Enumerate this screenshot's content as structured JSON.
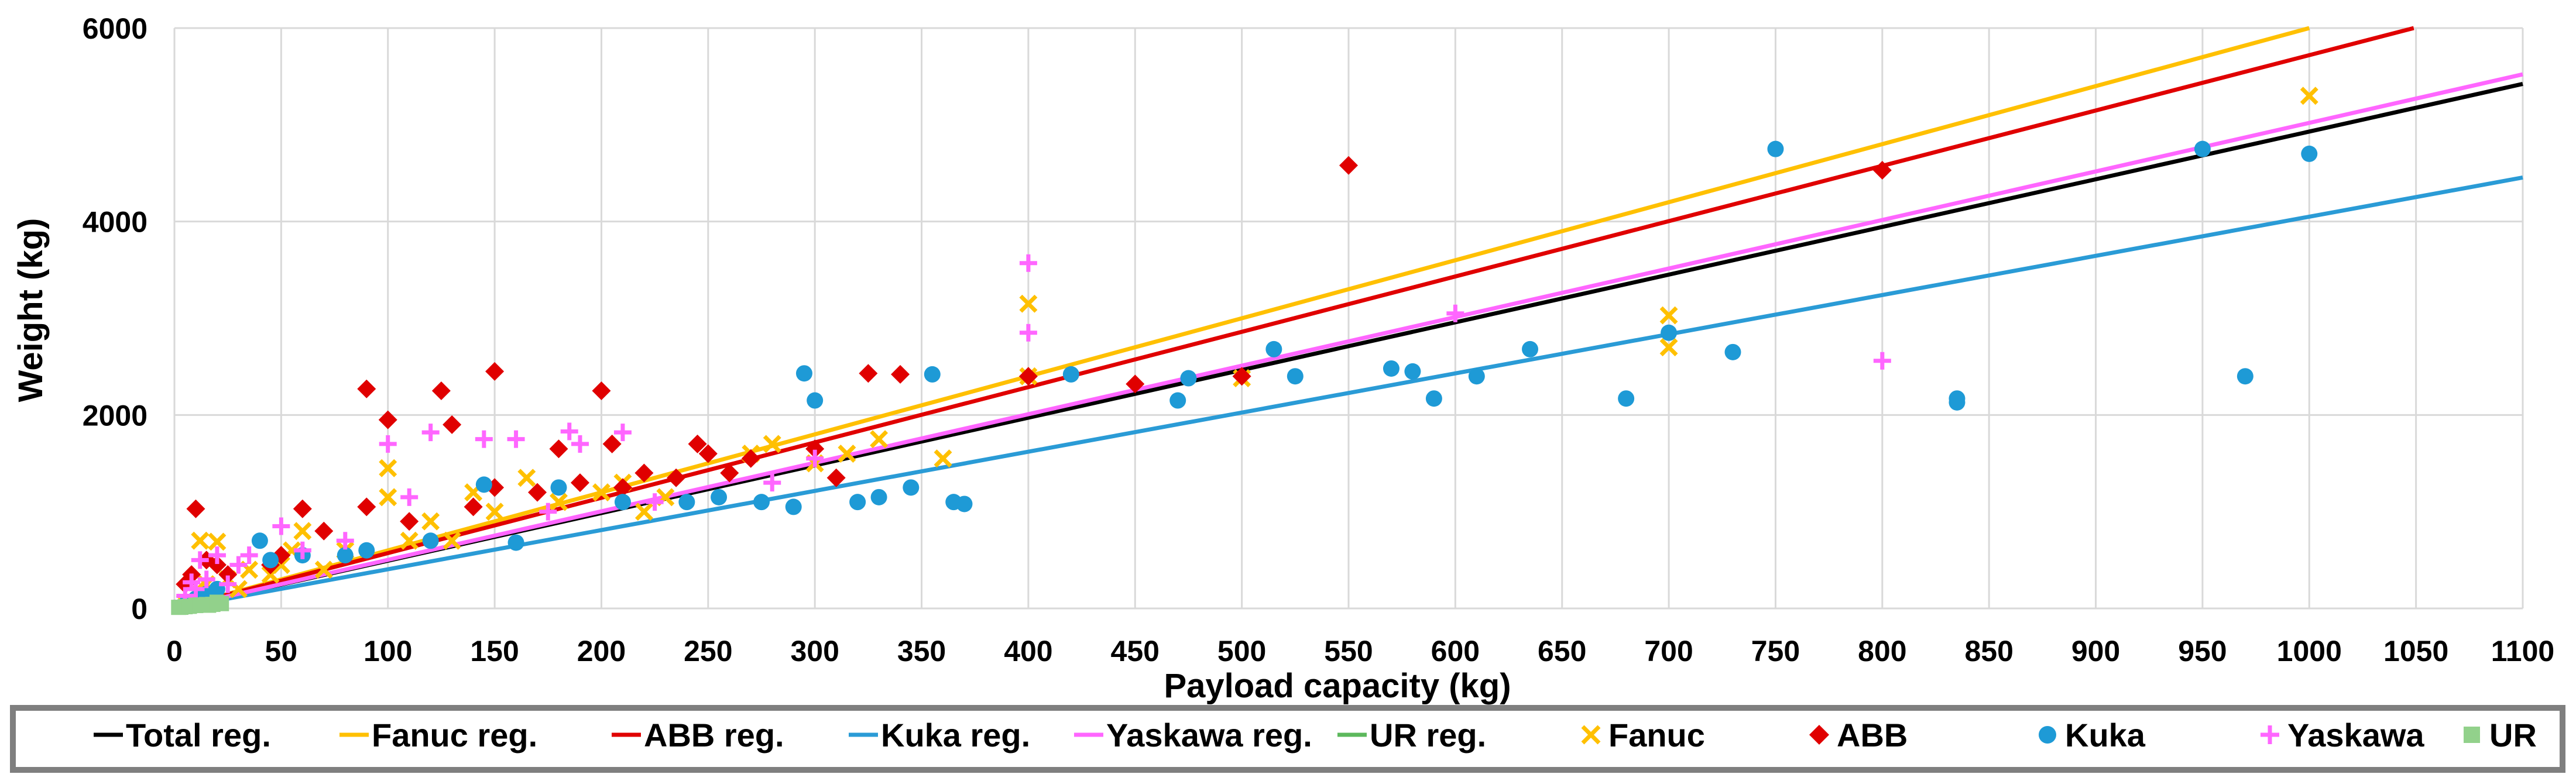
{
  "chart_data": {
    "type": "scatter",
    "title": "",
    "xlabel": "Payload capacity (kg)",
    "ylabel": "Weight (kg)",
    "xlim": [
      0,
      1100
    ],
    "ylim": [
      0,
      6000
    ],
    "x_ticks": [
      0,
      50,
      100,
      150,
      200,
      250,
      300,
      350,
      400,
      450,
      500,
      550,
      600,
      650,
      700,
      750,
      800,
      850,
      900,
      950,
      1000,
      1050,
      1100
    ],
    "y_ticks": [
      0,
      2000,
      4000,
      6000
    ],
    "grid": "vertical and horizontal gridlines",
    "legend_position": "bottom",
    "regressions": [
      {
        "name": "Total reg.",
        "color": "#000000",
        "slope": 4.93
      },
      {
        "name": "Fanuc reg.",
        "color": "#FFC000",
        "slope": 6.0
      },
      {
        "name": "ABB reg.",
        "color": "#E00000",
        "slope": 5.72
      },
      {
        "name": "Kuka reg.",
        "color": "#2A9BD6",
        "slope": 4.05
      },
      {
        "name": "Yaskawa reg.",
        "color": "#FF66FF",
        "slope": 5.02
      },
      {
        "name": "UR reg.",
        "color": "#5CB85C",
        "slope": 3.0,
        "x_max": 20
      }
    ],
    "series": [
      {
        "name": "Fanuc",
        "marker": "x",
        "color": "#FFC000",
        "points": [
          [
            5,
            60
          ],
          [
            10,
            180
          ],
          [
            12,
            700
          ],
          [
            15,
            250
          ],
          [
            20,
            690
          ],
          [
            25,
            300
          ],
          [
            30,
            200
          ],
          [
            35,
            400
          ],
          [
            45,
            350
          ],
          [
            50,
            450
          ],
          [
            55,
            600
          ],
          [
            60,
            800
          ],
          [
            70,
            400
          ],
          [
            80,
            600
          ],
          [
            100,
            1150
          ],
          [
            100,
            1450
          ],
          [
            110,
            700
          ],
          [
            120,
            900
          ],
          [
            130,
            700
          ],
          [
            140,
            1200
          ],
          [
            150,
            1000
          ],
          [
            165,
            1350
          ],
          [
            180,
            1100
          ],
          [
            200,
            1200
          ],
          [
            210,
            1300
          ],
          [
            220,
            1000
          ],
          [
            230,
            1150
          ],
          [
            270,
            1600
          ],
          [
            280,
            1700
          ],
          [
            300,
            1500
          ],
          [
            315,
            1600
          ],
          [
            330,
            1750
          ],
          [
            360,
            1550
          ],
          [
            400,
            3150
          ],
          [
            400,
            2400
          ],
          [
            500,
            2380
          ],
          [
            700,
            3030
          ],
          [
            700,
            2700
          ],
          [
            1000,
            5300
          ]
        ]
      },
      {
        "name": "ABB",
        "marker": "diamond",
        "color": "#E00000",
        "points": [
          [
            5,
            250
          ],
          [
            8,
            350
          ],
          [
            10,
            1030
          ],
          [
            15,
            500
          ],
          [
            20,
            450
          ],
          [
            25,
            350
          ],
          [
            45,
            450
          ],
          [
            50,
            550
          ],
          [
            60,
            1030
          ],
          [
            70,
            800
          ],
          [
            90,
            2270
          ],
          [
            90,
            1050
          ],
          [
            100,
            1950
          ],
          [
            110,
            900
          ],
          [
            125,
            2250
          ],
          [
            130,
            1900
          ],
          [
            140,
            1050
          ],
          [
            150,
            2450
          ],
          [
            150,
            1250
          ],
          [
            170,
            1200
          ],
          [
            180,
            1650
          ],
          [
            190,
            1300
          ],
          [
            200,
            2250
          ],
          [
            205,
            1700
          ],
          [
            210,
            1250
          ],
          [
            220,
            1400
          ],
          [
            235,
            1350
          ],
          [
            245,
            1700
          ],
          [
            250,
            1600
          ],
          [
            260,
            1400
          ],
          [
            270,
            1550
          ],
          [
            300,
            1650
          ],
          [
            310,
            1350
          ],
          [
            325,
            2430
          ],
          [
            340,
            2420
          ],
          [
            400,
            2400
          ],
          [
            450,
            2320
          ],
          [
            500,
            2400
          ],
          [
            550,
            4580
          ],
          [
            800,
            4530
          ]
        ]
      },
      {
        "name": "Kuka",
        "marker": "circle",
        "color": "#1E9AD6",
        "points": [
          [
            6,
            60
          ],
          [
            10,
            100
          ],
          [
            15,
            150
          ],
          [
            20,
            200
          ],
          [
            40,
            700
          ],
          [
            45,
            500
          ],
          [
            60,
            550
          ],
          [
            80,
            550
          ],
          [
            90,
            600
          ],
          [
            120,
            700
          ],
          [
            145,
            1280
          ],
          [
            160,
            680
          ],
          [
            180,
            1250
          ],
          [
            210,
            1100
          ],
          [
            240,
            1100
          ],
          [
            255,
            1150
          ],
          [
            275,
            1100
          ],
          [
            290,
            1050
          ],
          [
            295,
            2430
          ],
          [
            300,
            2150
          ],
          [
            320,
            1100
          ],
          [
            330,
            1150
          ],
          [
            345,
            1250
          ],
          [
            355,
            2420
          ],
          [
            365,
            1100
          ],
          [
            370,
            1080
          ],
          [
            420,
            2420
          ],
          [
            470,
            2150
          ],
          [
            475,
            2380
          ],
          [
            515,
            2680
          ],
          [
            525,
            2400
          ],
          [
            570,
            2480
          ],
          [
            580,
            2450
          ],
          [
            590,
            2170
          ],
          [
            610,
            2400
          ],
          [
            635,
            2680
          ],
          [
            680,
            2170
          ],
          [
            700,
            2850
          ],
          [
            730,
            2650
          ],
          [
            750,
            4750
          ],
          [
            835,
            2170
          ],
          [
            835,
            2130
          ],
          [
            950,
            4750
          ],
          [
            970,
            2400
          ],
          [
            1000,
            4700
          ]
        ]
      },
      {
        "name": "Yaskawa",
        "marker": "plus",
        "color": "#FF66FF",
        "points": [
          [
            5,
            130
          ],
          [
            8,
            270
          ],
          [
            10,
            200
          ],
          [
            12,
            500
          ],
          [
            15,
            300
          ],
          [
            20,
            550
          ],
          [
            25,
            250
          ],
          [
            30,
            450
          ],
          [
            35,
            550
          ],
          [
            50,
            850
          ],
          [
            60,
            600
          ],
          [
            80,
            700
          ],
          [
            100,
            1700
          ],
          [
            110,
            1150
          ],
          [
            120,
            1820
          ],
          [
            145,
            1750
          ],
          [
            160,
            1750
          ],
          [
            175,
            1000
          ],
          [
            185,
            1830
          ],
          [
            190,
            1700
          ],
          [
            210,
            1820
          ],
          [
            225,
            1100
          ],
          [
            280,
            1300
          ],
          [
            300,
            1550
          ],
          [
            400,
            3570
          ],
          [
            400,
            2850
          ],
          [
            600,
            3050
          ],
          [
            800,
            2560
          ]
        ]
      },
      {
        "name": "UR",
        "marker": "square",
        "color": "#92D18B",
        "points": [
          [
            2,
            11
          ],
          [
            3,
            12
          ],
          [
            5,
            18
          ],
          [
            7,
            22
          ],
          [
            10,
            30
          ],
          [
            10,
            33
          ],
          [
            12,
            36
          ],
          [
            15,
            40
          ],
          [
            16,
            33
          ],
          [
            18,
            42
          ],
          [
            20,
            64
          ],
          [
            22,
            50
          ]
        ]
      }
    ]
  },
  "legend": {
    "items": [
      {
        "label": "Total reg.",
        "kind": "line",
        "color": "#000000"
      },
      {
        "label": "Fanuc reg.",
        "kind": "line",
        "color": "#FFC000"
      },
      {
        "label": "ABB reg.",
        "kind": "line",
        "color": "#E00000"
      },
      {
        "label": "Kuka reg.",
        "kind": "line",
        "color": "#2A9BD6"
      },
      {
        "label": "Yaskawa reg.",
        "kind": "line",
        "color": "#FF66FF"
      },
      {
        "label": "UR reg.",
        "kind": "line",
        "color": "#5CB85C"
      },
      {
        "label": "Fanuc",
        "kind": "x",
        "color": "#FFC000"
      },
      {
        "label": "ABB",
        "kind": "diamond",
        "color": "#E00000"
      },
      {
        "label": "Kuka",
        "kind": "circle",
        "color": "#1E9AD6"
      },
      {
        "label": "Yaskawa",
        "kind": "plus",
        "color": "#FF66FF"
      },
      {
        "label": "UR",
        "kind": "square",
        "color": "#92D18B"
      }
    ]
  }
}
